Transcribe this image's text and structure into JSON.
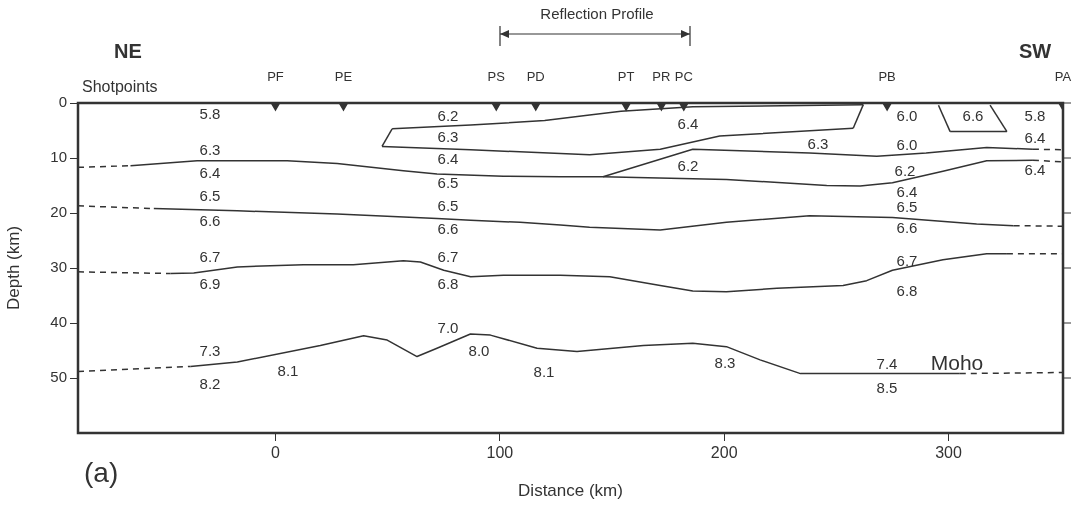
{
  "chart_data": {
    "type": "line",
    "xlabel": "Distance (km)",
    "ylabel": "Depth (km)",
    "xlim": [
      -88,
      351
    ],
    "xticks": [
      0,
      100,
      200,
      300
    ],
    "ylim": [
      60,
      0
    ],
    "yticks": [
      0,
      10,
      20,
      30,
      40,
      50
    ],
    "grid": false,
    "legend": false,
    "series": [
      {
        "color": "#333333",
        "line_style": "solid",
        "x": [
          52,
          87,
          120,
          140,
          154,
          186,
          262
        ],
        "values": [
          4.7,
          4.0,
          3.2,
          2.2,
          1.5,
          0.7,
          0.3
        ]
      },
      {
        "color": "#333333",
        "line_style": "solid",
        "x": [
          257.5,
          262
        ],
        "values": [
          4.6,
          0.3
        ]
      },
      {
        "color": "#333333",
        "line_style": "solid",
        "x": [
          47.5,
          87,
          140,
          171.5,
          198,
          257.5
        ],
        "values": [
          7.9,
          8.5,
          9.4,
          8.4,
          6.0,
          4.6
        ]
      },
      {
        "color": "#333333",
        "line_style": "solid",
        "x": [
          47.5,
          52
        ],
        "values": [
          7.9,
          4.7
        ]
      },
      {
        "color": "#333333",
        "line_style": "solid",
        "x": [
          295.5,
          300.7
        ],
        "values": [
          0.4,
          5.2
        ]
      },
      {
        "color": "#333333",
        "line_style": "solid",
        "x": [
          300.7,
          326
        ],
        "values": [
          5.2,
          5.2
        ]
      },
      {
        "color": "#333333",
        "line_style": "solid",
        "x": [
          318.5,
          326
        ],
        "values": [
          0.4,
          5.2
        ]
      },
      {
        "color": "#333333",
        "line_style": "dashed",
        "x": [
          -88,
          -64.6
        ],
        "values": [
          11.7,
          11.4
        ]
      },
      {
        "color": "#333333",
        "line_style": "solid",
        "x": [
          -64.6,
          -34.9,
          5.2,
          27.5,
          57,
          72,
          101.6,
          127,
          146,
          201,
          245.7,
          260.6,
          275,
          297.5,
          317,
          337.6
        ],
        "values": [
          11.4,
          10.5,
          10.5,
          11.0,
          12.3,
          12.9,
          13.3,
          13.4,
          13.4,
          13.9,
          15.0,
          15.1,
          14.5,
          12.4,
          10.5,
          10.4
        ]
      },
      {
        "color": "#333333",
        "line_style": "dashed",
        "x": [
          337.6,
          351
        ],
        "values": [
          10.4,
          10.7
        ]
      },
      {
        "color": "#333333",
        "line_style": "solid",
        "x": [
          146,
          186,
          238,
          268,
          290,
          317,
          337.6
        ],
        "values": [
          13.4,
          8.4,
          9.1,
          9.7,
          9.1,
          8.1,
          8.4
        ]
      },
      {
        "color": "#333333",
        "line_style": "dashed",
        "x": [
          337.6,
          351
        ],
        "values": [
          8.4,
          8.5
        ]
      },
      {
        "color": "#333333",
        "line_style": "dashed",
        "x": [
          -88,
          -54.2
        ],
        "values": [
          18.7,
          19.2
        ]
      },
      {
        "color": "#333333",
        "line_style": "solid",
        "x": [
          -54.2,
          -17,
          27.5,
          72,
          87,
          109,
          127,
          140,
          171.5,
          201,
          238,
          275,
          312.5,
          329
        ],
        "values": [
          19.2,
          19.6,
          20.2,
          21.0,
          21.3,
          21.7,
          22.2,
          22.6,
          23.1,
          21.7,
          20.5,
          20.8,
          22.0,
          22.3
        ]
      },
      {
        "color": "#333333",
        "line_style": "dashed",
        "x": [
          329,
          351
        ],
        "values": [
          22.3,
          22.4
        ]
      },
      {
        "color": "#333333",
        "line_style": "dashed",
        "x": [
          -88,
          -46.8
        ],
        "values": [
          30.7,
          31.0
        ]
      },
      {
        "color": "#333333",
        "line_style": "solid",
        "x": [
          -46.8,
          -36.4,
          -17,
          12.5,
          34.7,
          57,
          64.6,
          75,
          87,
          101.6,
          127,
          149,
          171.5,
          186,
          201,
          223.5,
          253,
          263.5,
          275,
          297.5,
          317,
          326
        ],
        "values": [
          31.0,
          30.9,
          29.8,
          29.4,
          29.4,
          28.7,
          28.9,
          30.4,
          31.6,
          31.3,
          31.3,
          31.6,
          33.2,
          34.2,
          34.3,
          33.7,
          33.2,
          32.3,
          30.4,
          28.5,
          27.4,
          27.4
        ]
      },
      {
        "color": "#333333",
        "line_style": "dashed",
        "x": [
          326,
          351
        ],
        "values": [
          27.4,
          27.4
        ]
      },
      {
        "color": "#333333",
        "line_style": "dashed",
        "x": [
          -88,
          -37.9
        ],
        "values": [
          48.8,
          47.9
        ]
      },
      {
        "color": "#333333",
        "line_style": "solid",
        "x": [
          -37.9,
          -17,
          20,
          39.3,
          49.8,
          63.1,
          72,
          86.9,
          95.8,
          116.6,
          134.4,
          164,
          186,
          201,
          216,
          234,
          305
        ],
        "values": [
          47.9,
          47.1,
          44.1,
          42.3,
          43.1,
          46.1,
          44.6,
          42.0,
          42.2,
          44.6,
          45.2,
          44.1,
          43.7,
          44.3,
          46.7,
          49.2,
          49.2
        ]
      },
      {
        "color": "#333333",
        "line_style": "dashed",
        "x": [
          305,
          351
        ],
        "values": [
          49.2,
          49.0
        ]
      },
      {
        "type": "scatter",
        "color": "#333333",
        "marker": "triangle",
        "x": [
          0,
          30.3,
          98.4,
          116,
          156.3,
          172,
          182,
          272.6,
          351
        ],
        "values": [
          0,
          0,
          0,
          0,
          0,
          0,
          0,
          0,
          0
        ]
      }
    ],
    "annotations": [
      "NE",
      "SW",
      "(a)",
      "Shotpoints",
      "Reflection Profile",
      {
        "text": "PF",
        "x": 0,
        "y": 0
      },
      {
        "text": "PE",
        "x": 30.3,
        "y": 0
      },
      {
        "text": "PS",
        "x": 98.4,
        "y": 0
      },
      {
        "text": "PD",
        "x": 116,
        "y": 0
      },
      {
        "text": "PT",
        "x": 156.3,
        "y": 0
      },
      {
        "text": "PR",
        "x": 172,
        "y": 0
      },
      {
        "text": "PC",
        "x": 182,
        "y": 0
      },
      {
        "text": "PB",
        "x": 272.6,
        "y": 0
      },
      {
        "text": "PA",
        "x": 351,
        "y": 0
      },
      "5.8",
      "6.2",
      "6.3",
      "6.4",
      "6.0",
      "6.6",
      "5.8",
      "6.4",
      "6.3",
      "6.0",
      "6.3",
      "6.4",
      "6.4",
      "6.5",
      "6.2",
      "6.2",
      "6.4",
      "6.4",
      "6.5",
      "6.5",
      "6.5",
      "6.6",
      "6.6",
      "6.6",
      "6.7",
      "6.7",
      "6.7",
      "6.9",
      "6.8",
      "6.8",
      "7.0",
      "7.3",
      "8.0",
      "8.1",
      "8.1",
      "8.3",
      "7.4",
      "Moho",
      "8.2",
      "8.5"
    ]
  }
}
